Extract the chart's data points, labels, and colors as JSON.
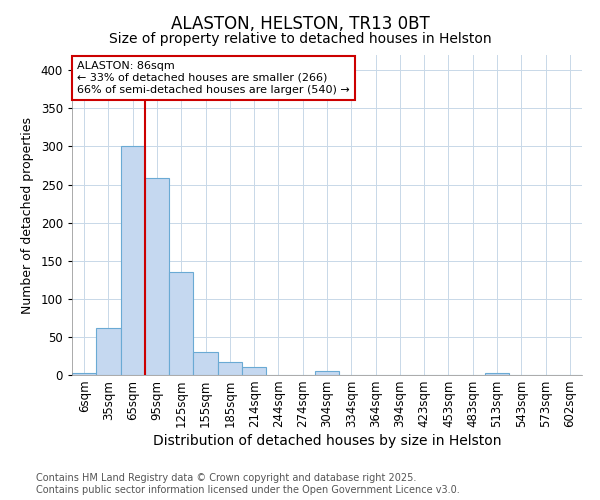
{
  "title": "ALASTON, HELSTON, TR13 0BT",
  "subtitle": "Size of property relative to detached houses in Helston",
  "xlabel": "Distribution of detached houses by size in Helston",
  "ylabel": "Number of detached properties",
  "categories": [
    "6sqm",
    "35sqm",
    "65sqm",
    "95sqm",
    "125sqm",
    "155sqm",
    "185sqm",
    "214sqm",
    "244sqm",
    "274sqm",
    "304sqm",
    "334sqm",
    "364sqm",
    "394sqm",
    "423sqm",
    "453sqm",
    "483sqm",
    "513sqm",
    "543sqm",
    "573sqm",
    "602sqm"
  ],
  "values": [
    2,
    62,
    300,
    258,
    135,
    30,
    17,
    11,
    0,
    0,
    5,
    0,
    0,
    0,
    0,
    0,
    0,
    2,
    0,
    0,
    0
  ],
  "bar_color": "#c5d8f0",
  "bar_edge_color": "#6aaad4",
  "vline_color": "#cc0000",
  "vline_index": 3,
  "annotation_text": "ALASTON: 86sqm\n← 33% of detached houses are smaller (266)\n66% of semi-detached houses are larger (540) →",
  "annotation_box_color": "white",
  "annotation_box_edge": "#cc0000",
  "ylim": [
    0,
    420
  ],
  "yticks": [
    0,
    50,
    100,
    150,
    200,
    250,
    300,
    350,
    400
  ],
  "footnote": "Contains HM Land Registry data © Crown copyright and database right 2025.\nContains public sector information licensed under the Open Government Licence v3.0.",
  "background_color": "#ffffff",
  "plot_background": "#ffffff",
  "grid_color": "#c8d8e8",
  "title_fontsize": 12,
  "subtitle_fontsize": 10,
  "ylabel_fontsize": 9,
  "xlabel_fontsize": 10,
  "tick_fontsize": 8.5,
  "footnote_fontsize": 7,
  "annotation_fontsize": 8
}
